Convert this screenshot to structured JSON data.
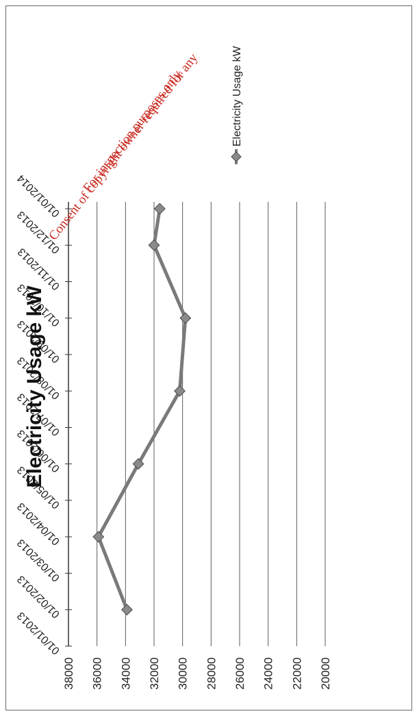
{
  "chart_data": {
    "type": "line",
    "title": "Electricity Usage kW",
    "xlabel": "",
    "ylabel": "",
    "x": [
      "01/01/2013",
      "01/02/2013",
      "01/03/2013",
      "01/04/2013",
      "01/05/2013",
      "01/06/2013",
      "01/07/2013",
      "01/08/2013",
      "01/09/2013",
      "01/10/2013",
      "01/11/2013",
      "01/12/2013",
      "01/01/2014"
    ],
    "series": [
      {
        "name": "Electricity Usage kW",
        "points": [
          {
            "x": "01/02/2013",
            "y": 33900
          },
          {
            "x": "01/04/2013",
            "y": 35900
          },
          {
            "x": "01/06/2013",
            "y": 33100
          },
          {
            "x": "01/08/2013",
            "y": 30200
          },
          {
            "x": "01/10/2013",
            "y": 29800
          },
          {
            "x": "01/12/2013",
            "y": 32000
          },
          {
            "x": "01/01/2014",
            "y": 31600
          }
        ]
      }
    ],
    "y_ticks": [
      38000,
      36000,
      34000,
      32000,
      30000,
      28000,
      26000,
      24000,
      22000,
      20000
    ],
    "ylim": [
      20000,
      38000
    ],
    "grid": true,
    "legend_position": "right",
    "orientation": "rotated 90 degrees counter-clockwise",
    "line_color": "#7a7a7a"
  },
  "watermark": {
    "line1": "For inspection purposes only.",
    "line2": "Consent of copyright owner required for any",
    "color": "#c8281e"
  }
}
